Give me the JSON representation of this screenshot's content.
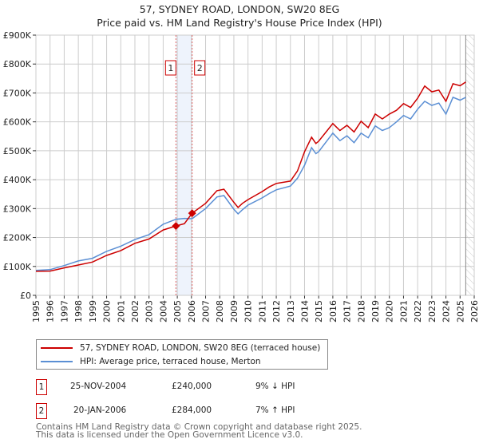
{
  "chart_data": {
    "type": "line",
    "title": "57, SYDNEY ROAD, LONDON, SW20 8EG",
    "subtitle": "Price paid vs. HM Land Registry's House Price Index (HPI)",
    "xlim": [
      1995,
      2026
    ],
    "ylim": [
      0,
      900000
    ],
    "x_ticks": [
      "1995",
      "1996",
      "1997",
      "1998",
      "1999",
      "2000",
      "2001",
      "2002",
      "2003",
      "2004",
      "2005",
      "2006",
      "2007",
      "2008",
      "2009",
      "2010",
      "2011",
      "2012",
      "2013",
      "2014",
      "2015",
      "2016",
      "2017",
      "2018",
      "2019",
      "2020",
      "2021",
      "2022",
      "2023",
      "2024",
      "2025",
      "2026"
    ],
    "y_ticks": [
      {
        "v": 0,
        "label": "£0"
      },
      {
        "v": 100000,
        "label": "£100K"
      },
      {
        "v": 200000,
        "label": "£200K"
      },
      {
        "v": 300000,
        "label": "£300K"
      },
      {
        "v": 400000,
        "label": "£400K"
      },
      {
        "v": 500000,
        "label": "£500K"
      },
      {
        "v": 600000,
        "label": "£600K"
      },
      {
        "v": 700000,
        "label": "£700K"
      },
      {
        "v": 800000,
        "label": "£800K"
      },
      {
        "v": 900000,
        "label": "£900K"
      }
    ],
    "grid": true,
    "series": [
      {
        "name": "57, SYDNEY ROAD, LONDON, SW20 8EG (terraced house)",
        "color": "#cc0000",
        "x": [
          1995,
          1996,
          1997,
          1998,
          1999,
          2000,
          2001,
          2002,
          2003,
          2004,
          2004.9,
          2005.5,
          2006.05,
          2007,
          2007.8,
          2008.3,
          2009.0,
          2009.3,
          2009.6,
          2010,
          2011,
          2011.5,
          2012,
          2013,
          2013.5,
          2014,
          2014.5,
          2014.8,
          2015,
          2016,
          2016.5,
          2017,
          2017.5,
          2018,
          2018.5,
          2019,
          2019.5,
          2020,
          2020.5,
          2021,
          2021.5,
          2022,
          2022.5,
          2023,
          2023.5,
          2024,
          2024.5,
          2025,
          2025.4
        ],
        "y": [
          83000,
          84000,
          95000,
          105000,
          115000,
          138000,
          155000,
          180000,
          195000,
          226000,
          240000,
          248000,
          284000,
          318000,
          362000,
          367000,
          322000,
          304000,
          318000,
          331000,
          359000,
          375000,
          387000,
          395000,
          430000,
          497000,
          547000,
          525000,
          533000,
          594000,
          570000,
          588000,
          565000,
          602000,
          580000,
          627000,
          610000,
          627000,
          640000,
          663000,
          650000,
          682000,
          724000,
          704000,
          710000,
          671000,
          732000,
          725000,
          738000
        ]
      },
      {
        "name": "HPI: Average price, terraced house, Merton",
        "color": "#5b8fd4",
        "x": [
          1995,
          1996,
          1997,
          1998,
          1999,
          2000,
          2001,
          2002,
          2003,
          2004,
          2004.9,
          2005.5,
          2006.05,
          2007,
          2007.8,
          2008.3,
          2009.0,
          2009.3,
          2009.6,
          2010,
          2011,
          2011.5,
          2012,
          2013,
          2013.5,
          2014,
          2014.5,
          2014.8,
          2015,
          2016,
          2016.5,
          2017,
          2017.5,
          2018,
          2018.5,
          2019,
          2019.5,
          2020,
          2020.5,
          2021,
          2021.5,
          2022,
          2022.5,
          2023,
          2023.5,
          2024,
          2024.5,
          2025,
          2025.4
        ],
        "y": [
          86000,
          89000,
          103000,
          119000,
          128000,
          152000,
          170000,
          193000,
          210000,
          246000,
          263000,
          266000,
          265000,
          300000,
          340000,
          345000,
          298000,
          282000,
          296000,
          312000,
          337000,
          352000,
          365000,
          378000,
          405000,
          450000,
          511000,
          490000,
          497000,
          561000,
          535000,
          552000,
          528000,
          561000,
          545000,
          586000,
          570000,
          580000,
          600000,
          622000,
          610000,
          644000,
          671000,
          657000,
          665000,
          627000,
          685000,
          675000,
          685000
        ]
      }
    ],
    "sales": [
      {
        "label": "1",
        "x": 2004.9,
        "y": 240000
      },
      {
        "label": "2",
        "x": 2006.05,
        "y": 284000
      }
    ],
    "shaded_span": [
      2004.9,
      2006.05
    ],
    "forecast_hatch_from": 2025.4,
    "legend_placement": "bottom"
  },
  "transactions": [
    {
      "num": "1",
      "date": "25-NOV-2004",
      "price": "£240,000",
      "hpi": "9% ↓ HPI"
    },
    {
      "num": "2",
      "date": "20-JAN-2006",
      "price": "£284,000",
      "hpi": "7% ↑ HPI"
    }
  ],
  "footer": {
    "line1": "Contains HM Land Registry data © Crown copyright and database right 2025.",
    "line2": "This data is licensed under the Open Government Licence v3.0."
  }
}
